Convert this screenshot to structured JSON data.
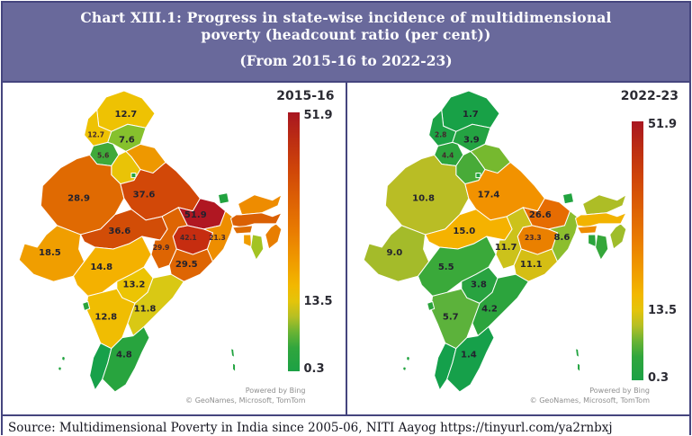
{
  "title": {
    "line1": "Chart XIII.1: Progress in state-wise incidence of multidimensional",
    "line2": "poverty (headcount ratio (per cent))",
    "line3": "(From 2015-16 to 2022-23)"
  },
  "source": "Source: Multidimensional Poverty in India since 2005-06, NITI Aayog https://tinyurl.com/ya2rnbxj",
  "attribution": {
    "powered": "Powered by Bing",
    "credits": "© GeoNames, Microsoft, TomTom"
  },
  "legend": {
    "max": "51.9",
    "mid": "13.5",
    "min": "0.3",
    "gradient": [
      "#a81621 0%",
      "#bb2c13 10%",
      "#cf4509 22%",
      "#dd6104 34%",
      "#e97c01 46%",
      "#f09c00 58%",
      "#f2b800 67%",
      "#e4c40a 73%",
      "#b5bf24 79%",
      "#68b334 85%",
      "#30a63d 91%",
      "#1ca145 100%"
    ]
  },
  "panels": [
    {
      "year": "2015-16"
    },
    {
      "year": "2022-23"
    }
  ],
  "states": [
    {
      "id": "ladakh",
      "name": "Ladakh",
      "v1": "12.7",
      "c1": "#eec203",
      "s1": false,
      "v2": "1.7",
      "c2": "#18a147",
      "s2": false
    },
    {
      "id": "jk",
      "name": "Jammu & Kashmir",
      "v1": "12.7",
      "c1": "#eec203",
      "s1": true,
      "v2": "2.8",
      "c2": "#1da245",
      "s2": true
    },
    {
      "id": "hp",
      "name": "Himachal Pradesh",
      "v1": "7.6",
      "c1": "#86c12d",
      "s1": false,
      "v2": "3.9",
      "c2": "#24a342",
      "s2": false
    },
    {
      "id": "punjab",
      "name": "Punjab",
      "v1": "5.6",
      "c1": "#3fa93a",
      "s1": true,
      "v2": "4.4",
      "c2": "#2ca43d",
      "s2": true
    },
    {
      "id": "uttarakhand",
      "name": "Uttarakhand",
      "v1": null,
      "c1": "#ee9800",
      "s1": false,
      "v2": null,
      "c2": "#76b92f",
      "s2": false
    },
    {
      "id": "haryana",
      "name": "Haryana",
      "v1": null,
      "c1": "#e9c307",
      "s1": false,
      "v2": null,
      "c2": "#48ab38",
      "s2": false
    },
    {
      "id": "delhi",
      "name": "Delhi",
      "v1": null,
      "c1": "#21a33f",
      "s1": false,
      "v2": null,
      "c2": "#21a33f",
      "s2": false
    },
    {
      "id": "rajasthan",
      "name": "Rajasthan",
      "v1": "28.9",
      "c1": "#e06a02",
      "s1": false,
      "v2": "10.8",
      "c2": "#b9bd25",
      "s2": false
    },
    {
      "id": "gujarat",
      "name": "Gujarat",
      "v1": "18.5",
      "c1": "#f09e00",
      "s1": false,
      "v2": "9.0",
      "c2": "#a4bb2a",
      "s2": false
    },
    {
      "id": "up",
      "name": "Uttar Pradesh",
      "v1": "37.6",
      "c1": "#d24808",
      "s1": false,
      "v2": "17.4",
      "c2": "#f29200",
      "s2": false
    },
    {
      "id": "bihar",
      "name": "Bihar",
      "v1": "51.9",
      "c1": "#b01722",
      "s1": false,
      "v2": "26.6",
      "c2": "#e66c02",
      "s2": false
    },
    {
      "id": "sikkim",
      "name": "Sikkim",
      "v1": null,
      "c1": "#21a33f",
      "s1": false,
      "v2": null,
      "c2": "#21a33f",
      "s2": false
    },
    {
      "id": "wb",
      "name": "West Bengal",
      "v1": "21.3",
      "c1": "#ee8e00",
      "s1": true,
      "v2": "8.6",
      "c2": "#8cbe2e",
      "s2": false
    },
    {
      "id": "jharkhand",
      "name": "Jharkhand",
      "v1": "42.1",
      "c1": "#c62d10",
      "s1": true,
      "v2": "23.3",
      "c2": "#ea8000",
      "s2": true
    },
    {
      "id": "mp",
      "name": "Madhya Pradesh",
      "v1": "36.6",
      "c1": "#d24d07",
      "s1": false,
      "v2": "15.0",
      "c2": "#f5b200",
      "s2": false
    },
    {
      "id": "chhattisgarh",
      "name": "Chhattisgarh",
      "v1": "29.9",
      "c1": "#de6503",
      "s1": true,
      "v2": "11.7",
      "c2": "#ccc21b",
      "s2": false
    },
    {
      "id": "odisha",
      "name": "Odisha",
      "v1": "29.5",
      "c1": "#de6503",
      "s1": false,
      "v2": "11.1",
      "c2": "#d5be14",
      "s2": false
    },
    {
      "id": "maharashtra",
      "name": "Maharashtra",
      "v1": "14.8",
      "c1": "#f4b100",
      "s1": false,
      "v2": "5.5",
      "c2": "#3aa93a",
      "s2": false
    },
    {
      "id": "telangana",
      "name": "Telangana",
      "v1": "13.2",
      "c1": "#ecc403",
      "s1": false,
      "v2": "3.8",
      "c2": "#28a340",
      "s2": false
    },
    {
      "id": "ap",
      "name": "Andhra Pradesh",
      "v1": "11.8",
      "c1": "#d9c814",
      "s1": false,
      "v2": "4.2",
      "c2": "#2ca43d",
      "s2": false
    },
    {
      "id": "karnataka",
      "name": "Karnataka",
      "v1": "12.8",
      "c1": "#f0bd02",
      "s1": false,
      "v2": "5.7",
      "c2": "#5cb23b",
      "s2": false
    },
    {
      "id": "goa",
      "name": "Goa",
      "v1": null,
      "c1": "#2aa43c",
      "s1": false,
      "v2": null,
      "c2": "#2aa43c",
      "s2": false
    },
    {
      "id": "kerala",
      "name": "Kerala",
      "v1": null,
      "c1": "#17a14a",
      "s1": false,
      "v2": null,
      "c2": "#14a04b",
      "s2": false
    },
    {
      "id": "tn",
      "name": "Tamil Nadu",
      "v1": "4.8",
      "c1": "#28a43e",
      "s1": false,
      "v2": "1.4",
      "c2": "#16a04a",
      "s2": false
    },
    {
      "id": "arunachal",
      "name": "Arunachal Pradesh",
      "v1": null,
      "c1": "#ee8c00",
      "s1": false,
      "v2": null,
      "c2": "#adbd26",
      "s2": false
    },
    {
      "id": "assam",
      "name": "Assam",
      "v1": null,
      "c1": "#da6004",
      "s1": false,
      "v2": null,
      "c2": "#f2b300",
      "s2": false
    },
    {
      "id": "meghalaya",
      "name": "Meghalaya",
      "v1": null,
      "c1": "#dd6c03",
      "s1": false,
      "v2": null,
      "c2": "#ee8c00",
      "s2": false
    },
    {
      "id": "nagaland",
      "name": "Nagaland & Manipur",
      "v1": null,
      "c1": "#e87e01",
      "s1": false,
      "v2": null,
      "c2": "#9fbd2b",
      "s2": false
    },
    {
      "id": "tripura",
      "name": "Tripura",
      "v1": null,
      "c1": "#f09d00",
      "s1": false,
      "v2": null,
      "c2": "#2aa43c",
      "s2": false
    },
    {
      "id": "mizoram",
      "name": "Mizoram",
      "v1": null,
      "c1": "#a3c322",
      "s1": false,
      "v2": null,
      "c2": "#35a73a",
      "s2": false
    },
    {
      "id": "islands",
      "name": "Islands",
      "v1": null,
      "c1": "#21a33f",
      "s1": false,
      "v2": null,
      "c2": "#21a33f",
      "s2": false
    }
  ],
  "chart_data": {
    "type": "heatmap",
    "subtype": "choropleth map of India, two panels",
    "title": "Chart XIII.1: Progress in state-wise incidence of multidimensional poverty (headcount ratio (per cent)) (From 2015-16 to 2022-23)",
    "colorbar": {
      "min": 0.3,
      "mid": 13.5,
      "max": 51.9,
      "low_color": "#1ca145",
      "mid_color": "#e4c40a",
      "high_color": "#a81621"
    },
    "categories": [
      "Ladakh",
      "Jammu & Kashmir",
      "Himachal Pradesh",
      "Punjab",
      "Rajasthan",
      "Gujarat",
      "Uttar Pradesh",
      "Bihar",
      "West Bengal",
      "Jharkhand",
      "Madhya Pradesh",
      "Chhattisgarh",
      "Odisha",
      "Maharashtra",
      "Telangana",
      "Andhra Pradesh",
      "Karnataka",
      "Tamil Nadu"
    ],
    "series": [
      {
        "name": "2015-16",
        "values": [
          12.7,
          12.7,
          7.6,
          5.6,
          28.9,
          18.5,
          37.6,
          51.9,
          21.3,
          42.1,
          36.6,
          29.9,
          29.5,
          14.8,
          13.2,
          11.8,
          12.8,
          4.8
        ]
      },
      {
        "name": "2022-23",
        "values": [
          1.7,
          2.8,
          3.9,
          4.4,
          10.8,
          9.0,
          17.4,
          26.6,
          8.6,
          23.3,
          15.0,
          11.7,
          11.1,
          5.5,
          3.8,
          4.2,
          5.7,
          1.4
        ]
      }
    ],
    "unlabeled_states": [
      "Uttarakhand",
      "Haryana",
      "Delhi",
      "Sikkim",
      "Goa",
      "Kerala",
      "Arunachal Pradesh",
      "Assam",
      "Meghalaya",
      "Nagaland & Manipur",
      "Tripura",
      "Mizoram"
    ],
    "legend_position": "right of each map",
    "attribution": "Powered by Bing — © GeoNames, Microsoft, TomTom"
  }
}
